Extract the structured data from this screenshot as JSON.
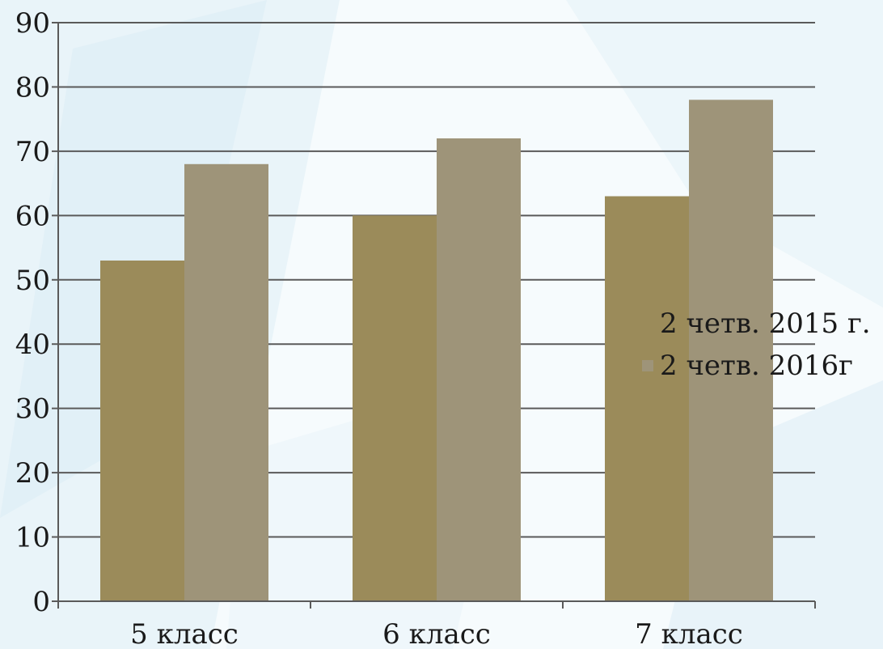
{
  "chart_data": {
    "type": "bar",
    "title": "",
    "xlabel": "",
    "ylabel": "",
    "categories": [
      "5 класс",
      "6 класс",
      "7 класс"
    ],
    "series": [
      {
        "name": "2 четв. 2015 г.",
        "values": [
          53,
          60,
          63
        ],
        "color": "#9b8b5a"
      },
      {
        "name": "2 четв. 2016г",
        "values": [
          68,
          72,
          78
        ],
        "color": "#9e9479"
      }
    ],
    "ylim": [
      0,
      90
    ],
    "yticks": [
      0,
      10,
      20,
      30,
      40,
      50,
      60,
      70,
      80,
      90
    ],
    "grid": true,
    "legend_position": "right",
    "background_color": "#eaf4f9"
  }
}
